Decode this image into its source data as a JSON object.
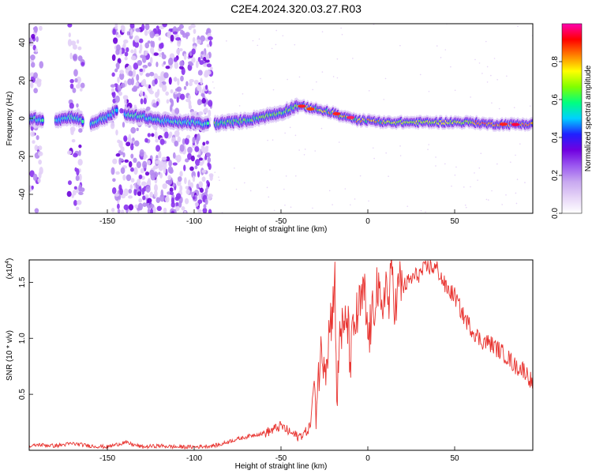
{
  "title": "C2E4.2024.320.03.27.R03",
  "chart_data": [
    {
      "type": "heatmap",
      "xlabel": "Height of straight line (km)",
      "ylabel": "Frequency (Hz)",
      "xlim": [
        -195,
        95
      ],
      "ylim": [
        -50,
        50
      ],
      "xticks": [
        -150,
        -100,
        -50,
        0,
        50
      ],
      "yticks": [
        -40,
        -20,
        0,
        20,
        40
      ],
      "colorbar": {
        "label": "Normalized spectral amplitude",
        "range": [
          0.0,
          1.0
        ],
        "ticks": [
          "0.0",
          "0.2",
          "0.4",
          "0.6",
          "0.8"
        ],
        "colors": [
          "#ffffff",
          "#e6d5f7",
          "#c8a8f0",
          "#9b59f0",
          "#7000e0",
          "#2020ff",
          "#00d0ff",
          "#00ff80",
          "#80ff00",
          "#ffff00",
          "#ff8000",
          "#ff0000",
          "#ff00b0"
        ]
      },
      "ridge": {
        "x": [
          -195,
          -180,
          -170,
          -160,
          -150,
          -145,
          -140,
          -130,
          -120,
          -110,
          -100,
          -95,
          -90,
          -80,
          -70,
          -60,
          -50,
          -45,
          -40,
          -35,
          -30,
          -25,
          -20,
          -15,
          -10,
          -5,
          0,
          10,
          20,
          30,
          40,
          50,
          60,
          70,
          80,
          90,
          95
        ],
        "y": [
          0,
          -1,
          1,
          -3,
          1,
          4,
          2,
          1,
          -1,
          -2,
          -2,
          -3,
          -3,
          -2,
          -1,
          1,
          3,
          5,
          7,
          6,
          5,
          4,
          3,
          1,
          0,
          -1,
          -1,
          -2,
          -2,
          -2,
          -2,
          -2,
          -2,
          -3,
          -3,
          -3,
          -3
        ]
      },
      "bright_band": {
        "x_start": -40,
        "x_end": 95
      }
    },
    {
      "type": "line",
      "xlabel": "Height of straight line (km)",
      "ylabel": "SNR (10 * v/v)",
      "y_multiplier": "(x10",
      "y_multiplier_exp": "4",
      "y_multiplier_close": ")",
      "xlim": [
        -195,
        95
      ],
      "ylim": [
        0,
        17000
      ],
      "xticks": [
        -150,
        -100,
        -50,
        0,
        50
      ],
      "yticks": [
        {
          "value": 5000,
          "label": "0.5"
        },
        {
          "value": 10000,
          "label": "1.0"
        },
        {
          "value": 15000,
          "label": "1.5"
        }
      ],
      "color": "#e8332f",
      "series": [
        {
          "x": [
            -195,
            -190,
            -180,
            -170,
            -160,
            -150,
            -140,
            -130,
            -120,
            -110,
            -100,
            -90,
            -85,
            -80,
            -75,
            -70,
            -65,
            -60,
            -55,
            -50,
            -45,
            -40,
            -37,
            -35,
            -33,
            -31,
            -30,
            -28,
            -26,
            -24,
            -22,
            -20,
            -19,
            -18,
            -16,
            -14,
            -12,
            -10,
            -8,
            -5,
            -2,
            0,
            3,
            5,
            8,
            10,
            12,
            14,
            16,
            18,
            20,
            25,
            30,
            35,
            40,
            45,
            50,
            55,
            60,
            65,
            70,
            75,
            80,
            85,
            90,
            95
          ],
          "y": [
            300,
            500,
            400,
            600,
            400,
            300,
            700,
            300,
            400,
            300,
            300,
            400,
            500,
            800,
            1000,
            1200,
            1400,
            1500,
            1800,
            2200,
            1600,
            1200,
            1500,
            1700,
            2300,
            6200,
            4000,
            7500,
            9000,
            8200,
            11000,
            13000,
            17200,
            3000,
            11500,
            10000,
            12000,
            8000,
            11000,
            12500,
            14000,
            10000,
            12000,
            15000,
            11500,
            15500,
            12800,
            16200,
            12500,
            15000,
            14500,
            15300,
            15800,
            16400,
            16200,
            14500,
            13800,
            12000,
            10800,
            9800,
            9600,
            9000,
            8400,
            7500,
            7200,
            6000
          ]
        }
      ]
    }
  ]
}
